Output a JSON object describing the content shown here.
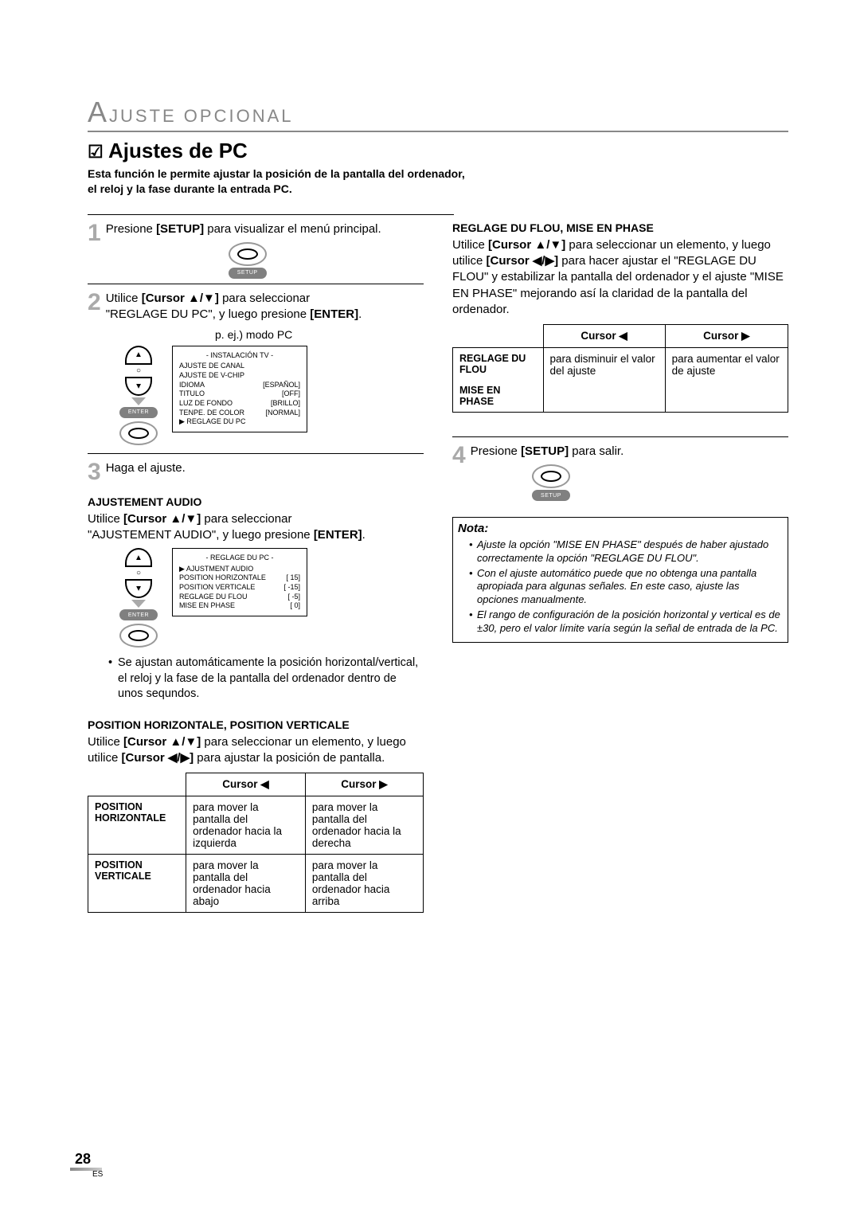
{
  "header": {
    "section": "JUSTE OPCIONAL",
    "bigLetter": "A"
  },
  "title": {
    "check": "☑",
    "text": "Ajustes de PC"
  },
  "intro": "Esta función le permite ajustar la posición de la pantalla del ordenador, el reloj y la fase durante la entrada PC.",
  "left": {
    "step1": {
      "num": "1",
      "prefix": "Presione ",
      "bold": "[SETUP]",
      "suffix": " para visualizar el menú principal.",
      "btnLabel": "SETUP"
    },
    "step2": {
      "num": "2",
      "line1a": "Utilice ",
      "line1bold": "[Cursor ▲/▼]",
      "line1b": " para seleccionar",
      "line2a": "\"REGLAGE DU PC\", y luego presione ",
      "line2bold": "[ENTER]",
      "line2b": ".",
      "caption": "p. ej.) modo PC",
      "enterLabel": "ENTER",
      "menu": {
        "title": "- INSTALACIÓN TV -",
        "rows": [
          [
            "AJUSTE DE CANAL",
            ""
          ],
          [
            "AJUSTE DE V-CHIP",
            ""
          ],
          [
            "IDIOMA",
            "[ESPAÑOL]"
          ],
          [
            "TITULO",
            "[OFF]"
          ],
          [
            "LUZ DE FONDO",
            "[BRILLO]"
          ],
          [
            "TENPE. DE COLOR",
            "[NORMAL]"
          ],
          [
            "▶ REGLAGE DU PC",
            ""
          ]
        ]
      }
    },
    "step3": {
      "num": "3",
      "text": "Haga el ajuste."
    },
    "audio": {
      "heading": "AJUSTEMENT AUDIO",
      "line1a": "Utilice ",
      "line1bold": "[Cursor ▲/▼]",
      "line1b": " para seleccionar",
      "line2a": "\"AJUSTEMENT AUDIO\", y luego presione ",
      "line2bold": "[ENTER]",
      "line2b": ".",
      "enterLabel": "ENTER",
      "menu": {
        "title": "- REGLAGE DU PC -",
        "rows": [
          [
            "▶ AJUSTMENT AUDIO",
            ""
          ],
          [
            "POSITION HORIZONTALE",
            "[   15]"
          ],
          [
            "POSITION VERTICALE",
            "[  -15]"
          ],
          [
            "REGLAGE DU FLOU",
            "[   -5]"
          ],
          [
            "MISE EN PHASE",
            "[    0]"
          ]
        ]
      },
      "bullet": "Se ajustan automáticamente la posición horizontal/vertical, el reloj y la fase de la pantalla del ordenador dentro de unos sequndos."
    },
    "pos": {
      "heading": "POSITION HORIZONTALE, POSITION VERTICALE",
      "p1a": "Utilice ",
      "p1b": "[Cursor ▲/▼]",
      "p1c": " para seleccionar un elemento, y luego utilice ",
      "p1d": "[Cursor ◀/▶]",
      "p1e": " para ajustar la posición de pantalla.",
      "table": {
        "colLeft": "Cursor ◀",
        "colRight": "Cursor ▶",
        "rows": [
          {
            "label": "POSITION HORIZONTALE",
            "left": "para mover la pantalla del ordenador hacia la izquierda",
            "right": "para mover la pantalla del ordenador hacia la derecha"
          },
          {
            "label": "POSITION VERTICALE",
            "left": "para mover la pantalla del ordenador hacia abajo",
            "right": "para mover la pantalla del ordenador hacia arriba"
          }
        ]
      }
    }
  },
  "right": {
    "flou": {
      "heading": "REGLAGE DU FLOU, MISE EN PHASE",
      "p1": "Utilice ",
      "p1bold": "[Cursor ▲/▼]",
      "p1b": " para seleccionar un elemento, y luego utilice ",
      "p1bold2": "[Cursor ◀/▶]",
      "p1c": " para hacer ajustar el \"REGLAGE DU FLOU\" y estabilizar la pantalla del ordenador y el ajuste \"MISE EN PHASE\" mejorando así la claridad de la pantalla del ordenador.",
      "table": {
        "colLeft": "Cursor ◀",
        "colRight": "Cursor ▶",
        "rows": [
          {
            "label": "REGLAGE DU FLOU",
            "left": "para disminuir el valor del ajuste",
            "right": "para aumentar el valor de ajuste"
          },
          {
            "label2": "MISE EN PHASE"
          }
        ]
      }
    },
    "step4": {
      "num": "4",
      "prefix": "Presione ",
      "bold": "[SETUP]",
      "suffix": " para salir.",
      "btnLabel": "SETUP"
    },
    "nota": {
      "title": "Nota:",
      "items": [
        "Ajuste la opción \"MISE EN PHASE\" después de haber ajustado correctamente la opción \"REGLAGE DU FLOU\".",
        "Con el ajuste automático puede que no obtenga una pantalla apropiada para algunas señales. En este caso, ajuste las opciones manualmente.",
        "El rango de configuración de la posición horizontal y vertical es de ±30, pero el valor límite varía según la señal de entrada de la PC."
      ]
    }
  },
  "page": {
    "num": "28",
    "lang": "ES"
  }
}
